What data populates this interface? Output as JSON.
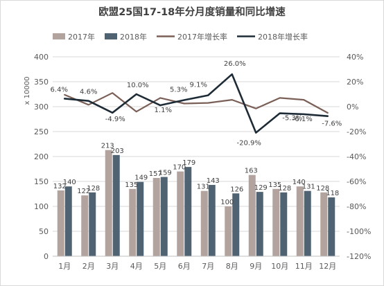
{
  "chart_data": {
    "type": "bar",
    "title": "欧盟25国17-18年分月度销量和同比增速",
    "ylabel": "x 10000",
    "categories": [
      "1月",
      "2月",
      "3月",
      "4月",
      "5月",
      "6月",
      "7月",
      "8月",
      "9月",
      "10月",
      "11月",
      "12月"
    ],
    "ylim": [
      0,
      400
    ],
    "y_ticks": [
      "0",
      "50",
      "100",
      "150",
      "200",
      "250",
      "300",
      "350",
      "400"
    ],
    "y2lim": [
      -120,
      40
    ],
    "y2_ticks": [
      "-120%",
      "-100%",
      "-80%",
      "-60%",
      "-40%",
      "-20%",
      "0%",
      "20%",
      "40%"
    ],
    "legend_position": "top",
    "grid": true,
    "series": [
      {
        "name": "2017年",
        "type": "bar",
        "axis": "left",
        "color": "#b3a39e",
        "values": [
          132,
          122,
          213,
          135,
          157,
          170,
          131,
          100,
          163,
          135,
          140,
          128
        ],
        "labels": [
          "132",
          "122",
          "213",
          "135",
          "157",
          "170",
          "131",
          "100",
          "163",
          "135",
          "140",
          "128"
        ]
      },
      {
        "name": "2018年",
        "type": "bar",
        "axis": "left",
        "color": "#4f6373",
        "values": [
          140,
          128,
          203,
          149,
          159,
          179,
          143,
          126,
          129,
          128,
          131,
          118
        ],
        "labels": [
          "140",
          "128",
          "203",
          "149",
          "159",
          "179",
          "143",
          "126",
          "129",
          "128",
          "131",
          "118"
        ]
      },
      {
        "name": "2017年增长率",
        "type": "line",
        "axis": "right",
        "color": "#7a5f57",
        "values": [
          9.5,
          1.5,
          11,
          -4.0,
          7.0,
          2.5,
          3.0,
          5.5,
          -1.5,
          7.0,
          5.5,
          -5.0
        ],
        "labels": [
          null,
          null,
          null,
          null,
          null,
          null,
          null,
          null,
          null,
          null,
          null,
          null
        ]
      },
      {
        "name": "2018年增长率",
        "type": "line",
        "axis": "right",
        "color": "#1d2b36",
        "values": [
          6.4,
          4.6,
          -4.9,
          10.0,
          1.1,
          5.3,
          9.1,
          26.0,
          -20.9,
          -5.3,
          -6.1,
          -7.6
        ],
        "labels": [
          "6.4%",
          "4.6%",
          "-4.9%",
          "10.0%",
          "1.1%",
          "5.3%",
          "9.1%",
          "26.0%",
          "-20.9%",
          "-5.3%",
          "-6.1%",
          "-7.6%"
        ]
      }
    ]
  }
}
